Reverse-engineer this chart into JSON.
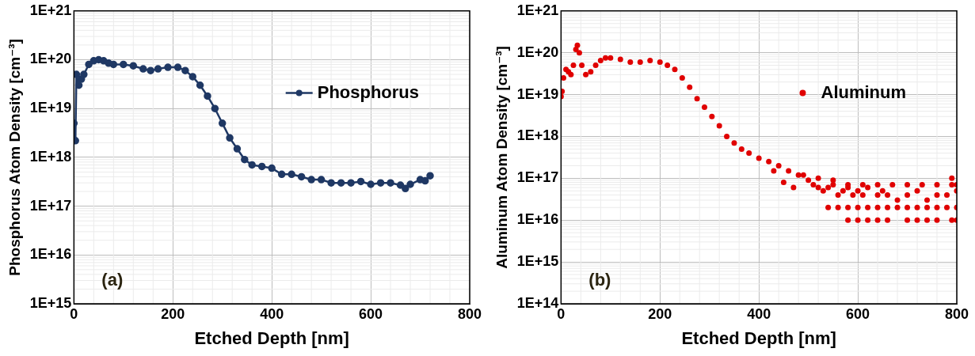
{
  "chart_data": [
    {
      "type": "line",
      "xlabel": "Etched Depth [nm]",
      "ylabel": "Phosphorus Atom Density [cm⁻³]",
      "annotations": [
        "(a)"
      ],
      "series": [
        {
          "name": "Phosphorus",
          "color": "#1f3864",
          "x": [
            0,
            3,
            5,
            10,
            15,
            20,
            30,
            40,
            50,
            60,
            70,
            80,
            100,
            120,
            140,
            155,
            170,
            190,
            210,
            225,
            240,
            255,
            270,
            285,
            300,
            315,
            330,
            345,
            360,
            380,
            400,
            420,
            440,
            460,
            480,
            500,
            520,
            540,
            560,
            580,
            600,
            620,
            640,
            660,
            670,
            680,
            700,
            710,
            720
          ],
          "values": [
            5e+18,
            2.2e+18,
            5e+19,
            3e+19,
            4e+19,
            5e+19,
            8e+19,
            9.5e+19,
            1e+20,
            9.5e+19,
            8.5e+19,
            8e+19,
            8e+19,
            7.5e+19,
            6.5e+19,
            6e+19,
            6.5e+19,
            7e+19,
            7e+19,
            6e+19,
            4.5e+19,
            3e+19,
            1.8e+19,
            1e+19,
            5e+18,
            2.5e+18,
            1.5e+18,
            9e+17,
            7e+17,
            6.5e+17,
            6e+17,
            4.5e+17,
            4.5e+17,
            4e+17,
            3.5e+17,
            3.5e+17,
            3e+17,
            3e+17,
            3e+17,
            3.2e+17,
            2.8e+17,
            3e+17,
            3e+17,
            2.7e+17,
            2.3e+17,
            2.8e+17,
            3.5e+17,
            3.3e+17,
            4.2e+17
          ]
        }
      ],
      "xlim": [
        0,
        800
      ],
      "xticks": [
        0,
        200,
        400,
        600,
        800
      ],
      "ylim": [
        1000000000000000.0,
        1e+21
      ],
      "yticks": [
        {
          "value": 1000000000000000.0,
          "label": "1E+15"
        },
        {
          "value": 1e+16,
          "label": "1E+16"
        },
        {
          "value": 1e+17,
          "label": "1E+17"
        },
        {
          "value": 1e+18,
          "label": "1E+18"
        },
        {
          "value": 1e+19,
          "label": "1E+19"
        },
        {
          "value": 1e+20,
          "label": "1E+20"
        },
        {
          "value": 1e+21,
          "label": "1E+21"
        }
      ],
      "log": "y",
      "grid": true,
      "legend": "top right",
      "marker": "circle",
      "line_style": "solid"
    },
    {
      "type": "scatter",
      "xlabel": "Etched Depth [nm]",
      "ylabel": "Aluminum Atom Density [cm⁻³]",
      "annotations": [
        "(b)"
      ],
      "series": [
        {
          "name": "Aluminum",
          "color": "#e00000",
          "x": [
            0,
            2,
            5,
            10,
            15,
            20,
            25,
            30,
            33,
            37,
            42,
            50,
            60,
            70,
            80,
            90,
            100,
            120,
            140,
            160,
            180,
            200,
            215,
            230,
            245,
            260,
            275,
            290,
            305,
            320,
            335,
            350,
            365,
            380,
            400,
            420,
            440,
            460,
            480,
            500,
            430,
            450,
            470,
            490,
            510,
            520,
            530,
            540,
            550,
            560,
            570,
            580,
            590,
            600,
            610,
            620,
            640,
            650,
            660,
            680,
            700,
            720,
            740,
            760,
            780,
            790,
            800,
            540,
            560,
            580,
            600,
            620,
            640,
            660,
            680,
            700,
            720,
            740,
            760,
            780,
            800,
            580,
            600,
            620,
            640,
            660,
            700,
            720,
            740,
            760,
            790,
            800,
            520,
            550,
            580,
            610,
            640,
            670,
            700,
            730,
            760,
            790,
            800
          ],
          "values": [
            9e+18,
            1.2e+19,
            2.5e+19,
            4e+19,
            3.5e+19,
            3e+19,
            5e+19,
            1.2e+20,
            1.5e+20,
            1e+20,
            5e+19,
            3e+19,
            3.5e+19,
            5e+19,
            6.5e+19,
            7.5e+19,
            7.5e+19,
            7e+19,
            6e+19,
            6e+19,
            6.5e+19,
            6e+19,
            5e+19,
            4e+19,
            2.5e+19,
            1.5e+19,
            8e+18,
            5e+18,
            3e+18,
            1.8e+18,
            1e+18,
            7e+17,
            5e+17,
            4e+17,
            3e+17,
            2.5e+17,
            2e+17,
            1.5e+17,
            1.2e+17,
            9e+16,
            1.5e+17,
            8e+16,
            6e+16,
            1.2e+17,
            7e+16,
            6e+16,
            5e+16,
            6e+16,
            7e+16,
            4e+16,
            5e+16,
            6e+16,
            4e+16,
            5e+16,
            4e+16,
            6e+16,
            4e+16,
            5e+16,
            4e+16,
            3e+16,
            4e+16,
            5e+16,
            3e+16,
            4e+16,
            4e+16,
            1e+17,
            5e+16,
            2e+16,
            2e+16,
            2e+16,
            2e+16,
            2e+16,
            2e+16,
            2e+16,
            2e+16,
            2e+16,
            2e+16,
            2e+16,
            2e+16,
            2e+16,
            2e+16,
            1e+16,
            1e+16,
            1e+16,
            1e+16,
            1e+16,
            1e+16,
            1e+16,
            1e+16,
            1e+16,
            1e+16,
            1e+16,
            1e+17,
            9e+16,
            7e+16,
            7e+16,
            7e+16,
            7e+16,
            7e+16,
            7e+16,
            7e+16,
            7e+16,
            7e+16
          ]
        }
      ],
      "xlim": [
        0,
        800
      ],
      "xticks": [
        0,
        200,
        400,
        600,
        800
      ],
      "ylim": [
        100000000000000.0,
        1e+21
      ],
      "yticks": [
        {
          "value": 100000000000000.0,
          "label": "1E+14"
        },
        {
          "value": 1000000000000000.0,
          "label": "1E+15"
        },
        {
          "value": 1e+16,
          "label": "1E+16"
        },
        {
          "value": 1e+17,
          "label": "1E+17"
        },
        {
          "value": 1e+18,
          "label": "1E+18"
        },
        {
          "value": 1e+19,
          "label": "1E+19"
        },
        {
          "value": 1e+20,
          "label": "1E+20"
        },
        {
          "value": 1e+21,
          "label": "1E+21"
        }
      ],
      "log": "y",
      "grid": true,
      "legend": "top right",
      "marker": "circle"
    }
  ]
}
